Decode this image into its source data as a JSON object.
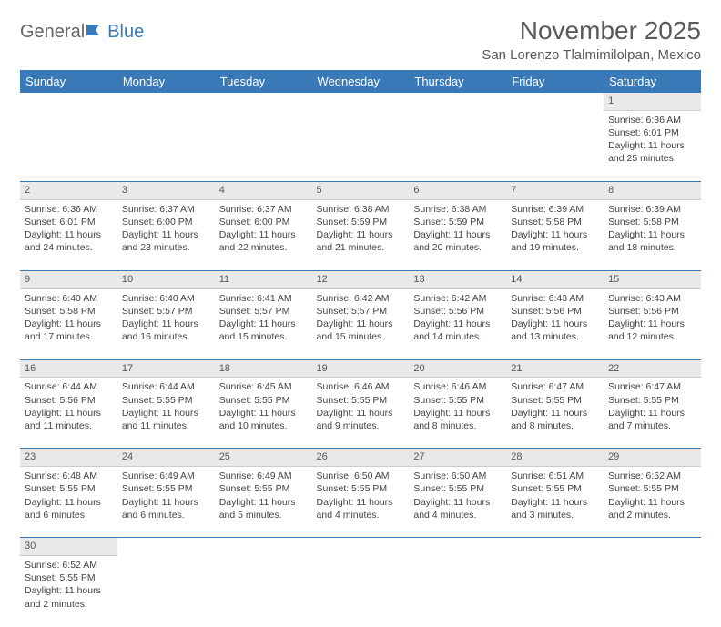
{
  "brand": {
    "part1": "General",
    "part2": "Blue"
  },
  "title": "November 2025",
  "location": "San Lorenzo Tlalmimilolpan, Mexico",
  "colors": {
    "header_bg": "#3a79b7",
    "daynum_bg": "#e9e9e9",
    "text": "#444444"
  },
  "weekdays": [
    "Sunday",
    "Monday",
    "Tuesday",
    "Wednesday",
    "Thursday",
    "Friday",
    "Saturday"
  ],
  "weeks": [
    [
      null,
      null,
      null,
      null,
      null,
      null,
      {
        "n": "1",
        "sunrise": "Sunrise: 6:36 AM",
        "sunset": "Sunset: 6:01 PM",
        "day1": "Daylight: 11 hours",
        "day2": "and 25 minutes."
      }
    ],
    [
      {
        "n": "2",
        "sunrise": "Sunrise: 6:36 AM",
        "sunset": "Sunset: 6:01 PM",
        "day1": "Daylight: 11 hours",
        "day2": "and 24 minutes."
      },
      {
        "n": "3",
        "sunrise": "Sunrise: 6:37 AM",
        "sunset": "Sunset: 6:00 PM",
        "day1": "Daylight: 11 hours",
        "day2": "and 23 minutes."
      },
      {
        "n": "4",
        "sunrise": "Sunrise: 6:37 AM",
        "sunset": "Sunset: 6:00 PM",
        "day1": "Daylight: 11 hours",
        "day2": "and 22 minutes."
      },
      {
        "n": "5",
        "sunrise": "Sunrise: 6:38 AM",
        "sunset": "Sunset: 5:59 PM",
        "day1": "Daylight: 11 hours",
        "day2": "and 21 minutes."
      },
      {
        "n": "6",
        "sunrise": "Sunrise: 6:38 AM",
        "sunset": "Sunset: 5:59 PM",
        "day1": "Daylight: 11 hours",
        "day2": "and 20 minutes."
      },
      {
        "n": "7",
        "sunrise": "Sunrise: 6:39 AM",
        "sunset": "Sunset: 5:58 PM",
        "day1": "Daylight: 11 hours",
        "day2": "and 19 minutes."
      },
      {
        "n": "8",
        "sunrise": "Sunrise: 6:39 AM",
        "sunset": "Sunset: 5:58 PM",
        "day1": "Daylight: 11 hours",
        "day2": "and 18 minutes."
      }
    ],
    [
      {
        "n": "9",
        "sunrise": "Sunrise: 6:40 AM",
        "sunset": "Sunset: 5:58 PM",
        "day1": "Daylight: 11 hours",
        "day2": "and 17 minutes."
      },
      {
        "n": "10",
        "sunrise": "Sunrise: 6:40 AM",
        "sunset": "Sunset: 5:57 PM",
        "day1": "Daylight: 11 hours",
        "day2": "and 16 minutes."
      },
      {
        "n": "11",
        "sunrise": "Sunrise: 6:41 AM",
        "sunset": "Sunset: 5:57 PM",
        "day1": "Daylight: 11 hours",
        "day2": "and 15 minutes."
      },
      {
        "n": "12",
        "sunrise": "Sunrise: 6:42 AM",
        "sunset": "Sunset: 5:57 PM",
        "day1": "Daylight: 11 hours",
        "day2": "and 15 minutes."
      },
      {
        "n": "13",
        "sunrise": "Sunrise: 6:42 AM",
        "sunset": "Sunset: 5:56 PM",
        "day1": "Daylight: 11 hours",
        "day2": "and 14 minutes."
      },
      {
        "n": "14",
        "sunrise": "Sunrise: 6:43 AM",
        "sunset": "Sunset: 5:56 PM",
        "day1": "Daylight: 11 hours",
        "day2": "and 13 minutes."
      },
      {
        "n": "15",
        "sunrise": "Sunrise: 6:43 AM",
        "sunset": "Sunset: 5:56 PM",
        "day1": "Daylight: 11 hours",
        "day2": "and 12 minutes."
      }
    ],
    [
      {
        "n": "16",
        "sunrise": "Sunrise: 6:44 AM",
        "sunset": "Sunset: 5:56 PM",
        "day1": "Daylight: 11 hours",
        "day2": "and 11 minutes."
      },
      {
        "n": "17",
        "sunrise": "Sunrise: 6:44 AM",
        "sunset": "Sunset: 5:55 PM",
        "day1": "Daylight: 11 hours",
        "day2": "and 11 minutes."
      },
      {
        "n": "18",
        "sunrise": "Sunrise: 6:45 AM",
        "sunset": "Sunset: 5:55 PM",
        "day1": "Daylight: 11 hours",
        "day2": "and 10 minutes."
      },
      {
        "n": "19",
        "sunrise": "Sunrise: 6:46 AM",
        "sunset": "Sunset: 5:55 PM",
        "day1": "Daylight: 11 hours",
        "day2": "and 9 minutes."
      },
      {
        "n": "20",
        "sunrise": "Sunrise: 6:46 AM",
        "sunset": "Sunset: 5:55 PM",
        "day1": "Daylight: 11 hours",
        "day2": "and 8 minutes."
      },
      {
        "n": "21",
        "sunrise": "Sunrise: 6:47 AM",
        "sunset": "Sunset: 5:55 PM",
        "day1": "Daylight: 11 hours",
        "day2": "and 8 minutes."
      },
      {
        "n": "22",
        "sunrise": "Sunrise: 6:47 AM",
        "sunset": "Sunset: 5:55 PM",
        "day1": "Daylight: 11 hours",
        "day2": "and 7 minutes."
      }
    ],
    [
      {
        "n": "23",
        "sunrise": "Sunrise: 6:48 AM",
        "sunset": "Sunset: 5:55 PM",
        "day1": "Daylight: 11 hours",
        "day2": "and 6 minutes."
      },
      {
        "n": "24",
        "sunrise": "Sunrise: 6:49 AM",
        "sunset": "Sunset: 5:55 PM",
        "day1": "Daylight: 11 hours",
        "day2": "and 6 minutes."
      },
      {
        "n": "25",
        "sunrise": "Sunrise: 6:49 AM",
        "sunset": "Sunset: 5:55 PM",
        "day1": "Daylight: 11 hours",
        "day2": "and 5 minutes."
      },
      {
        "n": "26",
        "sunrise": "Sunrise: 6:50 AM",
        "sunset": "Sunset: 5:55 PM",
        "day1": "Daylight: 11 hours",
        "day2": "and 4 minutes."
      },
      {
        "n": "27",
        "sunrise": "Sunrise: 6:50 AM",
        "sunset": "Sunset: 5:55 PM",
        "day1": "Daylight: 11 hours",
        "day2": "and 4 minutes."
      },
      {
        "n": "28",
        "sunrise": "Sunrise: 6:51 AM",
        "sunset": "Sunset: 5:55 PM",
        "day1": "Daylight: 11 hours",
        "day2": "and 3 minutes."
      },
      {
        "n": "29",
        "sunrise": "Sunrise: 6:52 AM",
        "sunset": "Sunset: 5:55 PM",
        "day1": "Daylight: 11 hours",
        "day2": "and 2 minutes."
      }
    ],
    [
      {
        "n": "30",
        "sunrise": "Sunrise: 6:52 AM",
        "sunset": "Sunset: 5:55 PM",
        "day1": "Daylight: 11 hours",
        "day2": "and 2 minutes."
      },
      null,
      null,
      null,
      null,
      null,
      null
    ]
  ]
}
